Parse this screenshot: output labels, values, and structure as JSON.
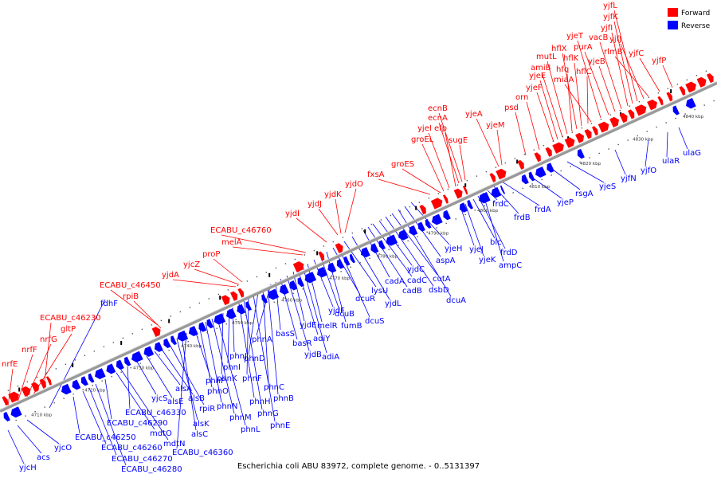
{
  "legend": {
    "forward_label": "Forward",
    "reverse_label": "Reverse",
    "forward_color": "#ff0000",
    "reverse_color": "#0000ff"
  },
  "caption": "Escherichia coli ABU 83972, complete genome. - 0..5131397",
  "colors": {
    "backbone": "#999999",
    "forward": "#ff0000",
    "reverse": "#0000ff",
    "forward_line": "#ff0000",
    "reverse_line": "#0000ff"
  },
  "ticks": [
    "4710 kbp",
    "4720 kbp",
    "4730 kbp",
    "4740 kbp",
    "4750 kbp",
    "4760 kbp",
    "4770 kbp",
    "4780 kbp",
    "4790 kbp",
    "4800 kbp",
    "4810 kbp",
    "4820 kbp",
    "4830 kbp",
    "4840 kbp"
  ],
  "forward_labels": [
    "nrfE",
    "nrfF",
    "nrfG",
    "gltP",
    "ECABU_c46230",
    "rpiB",
    "ECABU_c46450",
    "yjdA",
    "yjcZ",
    "proP",
    "melA",
    "ECABU_c46760",
    "yjdI",
    "yjdJ",
    "yjdK",
    "yjdO",
    "fxsA",
    "groES",
    "groEL",
    "yjeI",
    "efp",
    "ecnA",
    "ecnB",
    "sugE",
    "yjeA",
    "yjeM",
    "psd",
    "orn",
    "yjeF",
    "yjeE",
    "amiB",
    "mutL",
    "hfq",
    "hflX",
    "hflK",
    "hflC",
    "miaA",
    "yjeT",
    "purA",
    "yjeB",
    "vacB",
    "yjfI",
    "yjfK",
    "yjfL",
    "yjfJ",
    "rlmB",
    "yjfC",
    "yjfP"
  ],
  "reverse_labels": [
    "yjcH",
    "acs",
    "yjcO",
    "fdhF",
    "ECABU_c46250",
    "ECABU_c46260",
    "ECABU_c46270",
    "ECABU_c46280",
    "ECABU_c46290",
    "mdtO",
    "mdtN",
    "ECABU_c46330",
    "yjcS",
    "alsE",
    "alsA",
    "alsB",
    "rpiR",
    "alsK",
    "alsC",
    "ECABU_c46360",
    "phnP",
    "phnO",
    "phnN",
    "phnM",
    "phnL",
    "phnK",
    "phnI",
    "phnJ",
    "phnH",
    "phnG",
    "phnF",
    "phnE",
    "phnD",
    "phnC",
    "phnB",
    "phnA",
    "basS",
    "basR",
    "yjdB",
    "yjdE",
    "adiY",
    "adiA",
    "melR",
    "yjdF",
    "dcuB",
    "fumB",
    "dcuR",
    "dcuS",
    "lysU",
    "yjdL",
    "cadA",
    "cadB",
    "cadC",
    "yjdC",
    "dsbD",
    "cutA",
    "dcuA",
    "aspA",
    "yjeH",
    "yjeJ",
    "yjeK",
    "blc",
    "frdD",
    "ampC",
    "frdC",
    "frdB",
    "frdA",
    "yjeP",
    "rsgA",
    "yjeS",
    "yjfN",
    "yjfO",
    "ulaR",
    "ulaG"
  ]
}
